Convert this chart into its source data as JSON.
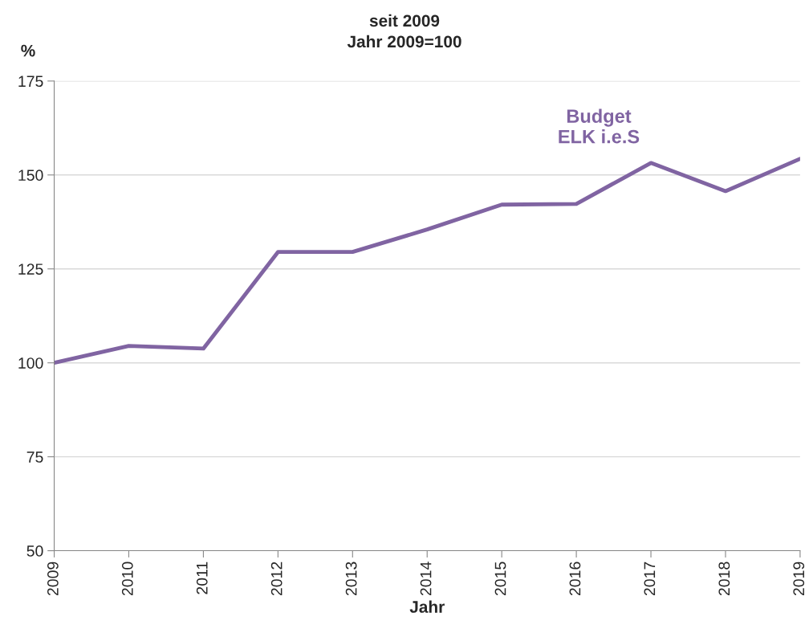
{
  "chart_data": {
    "type": "line",
    "title": "seit 2009",
    "subtitle": "Jahr 2009=100",
    "xlabel": "Jahr",
    "ylabel": "%",
    "x": [
      2009,
      2010,
      2011,
      2012,
      2013,
      2014,
      2015,
      2016,
      2017,
      2018,
      2019
    ],
    "series": [
      {
        "name": "Budget\nELK i.e.S",
        "color": "#8064a2",
        "values": [
          100,
          104.5,
          103.8,
          129.5,
          129.5,
          135.5,
          142.1,
          142.3,
          153.2,
          145.7,
          154.3
        ]
      }
    ],
    "xlim": [
      2009,
      2019
    ],
    "xticks": [
      2009,
      2010,
      2011,
      2012,
      2013,
      2014,
      2015,
      2016,
      2017,
      2018,
      2019
    ],
    "ylim": [
      50,
      175
    ],
    "yticks": [
      50,
      75,
      100,
      125,
      150,
      175
    ],
    "grid": "y",
    "legend": false,
    "marker": "none",
    "line_style": "solid"
  }
}
